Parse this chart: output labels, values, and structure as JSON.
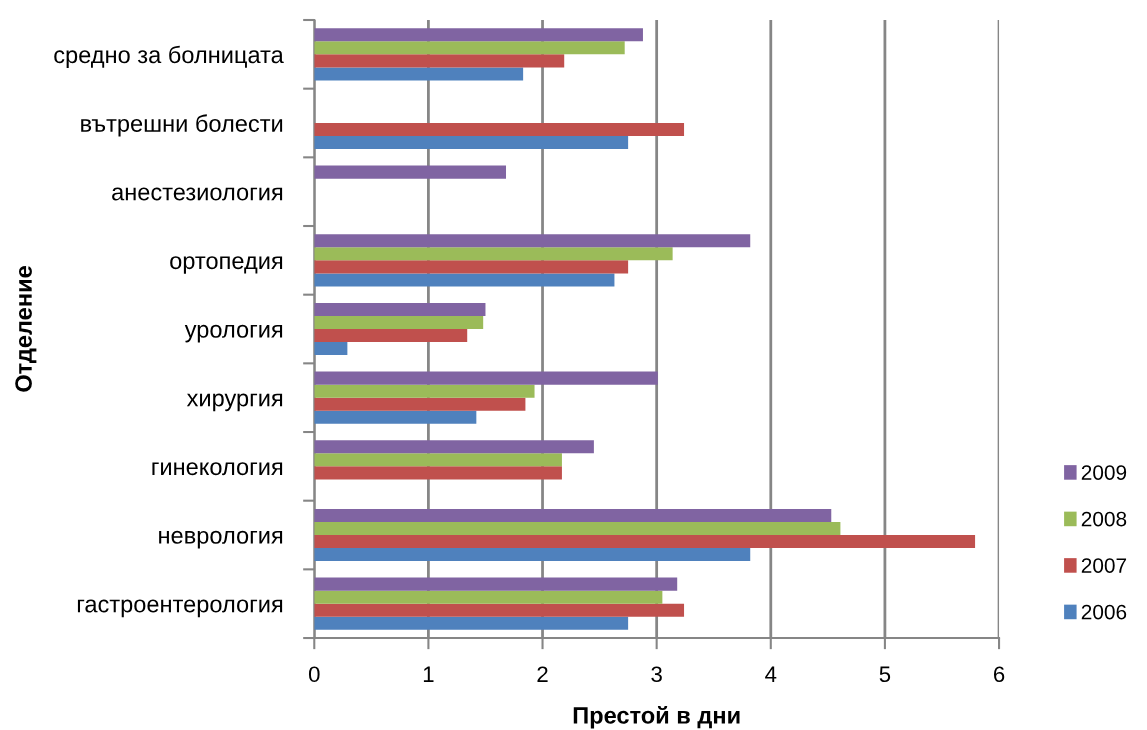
{
  "chart_data": {
    "type": "bar",
    "orientation": "horizontal",
    "xlabel": "Престой в дни",
    "ylabel": "Отделение",
    "categories": [
      "средно за болницата",
      "вътрешни болести",
      "анестезиология",
      "ортопедия",
      "урология",
      "хирургия",
      "гинекология",
      "неврология",
      "гастроентерология"
    ],
    "series": [
      {
        "name": "2006",
        "color": "#4f81bd",
        "values": [
          1.83,
          2.75,
          null,
          2.63,
          0.29,
          1.42,
          null,
          3.82,
          2.75
        ]
      },
      {
        "name": "2007",
        "color": "#c0504d",
        "values": [
          2.19,
          3.24,
          null,
          2.75,
          1.34,
          1.85,
          2.17,
          5.79,
          3.24
        ]
      },
      {
        "name": "2008",
        "color": "#9bbb59",
        "values": [
          2.72,
          null,
          null,
          3.14,
          1.48,
          1.93,
          2.17,
          4.61,
          3.05
        ]
      },
      {
        "name": "2009",
        "color": "#8064a2",
        "values": [
          2.88,
          null,
          1.68,
          3.82,
          1.5,
          3.01,
          2.45,
          4.53,
          3.18
        ]
      }
    ],
    "xlim": [
      0,
      6
    ],
    "xticks": [
      0,
      1,
      2,
      3,
      4,
      5,
      6
    ],
    "grid": "x",
    "legend": "right"
  }
}
